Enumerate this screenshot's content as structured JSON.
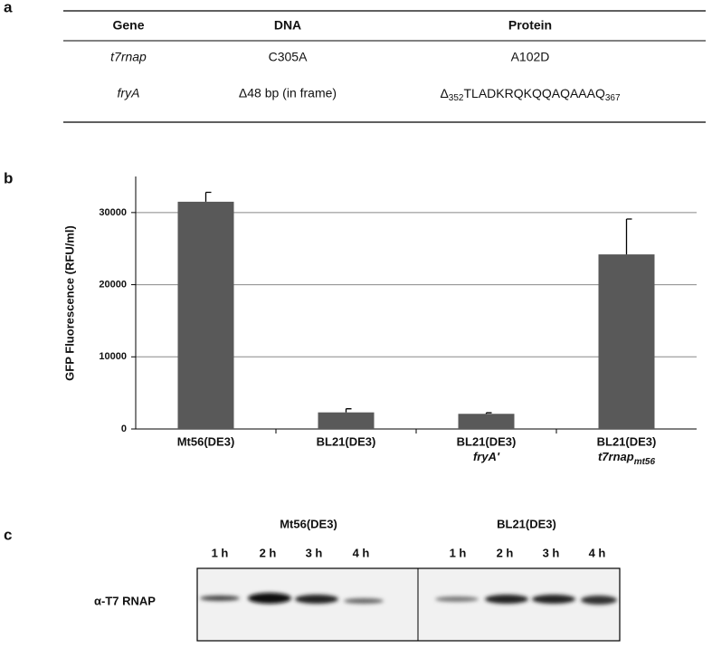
{
  "panel_labels": {
    "a": "a",
    "b": "b",
    "c": "c"
  },
  "table": {
    "header": [
      "Gene",
      "DNA",
      "Protein"
    ],
    "rows": [
      [
        "t7rnap",
        "C305A",
        "A102D"
      ],
      [
        "fryA",
        "Δ48 bp (in frame)",
        {
          "prefix": "Δ",
          "start": "352",
          "sequence": "TLADKRQKQQAQAAAQ",
          "end": "367"
        }
      ]
    ]
  },
  "chart_data": {
    "type": "bar",
    "y_label": "GFP Fluorescence (RFU/ml)",
    "categories": [
      "Mt56(DE3)",
      "BL21(DE3)",
      "BL21(DE3)",
      "BL21(DE3)"
    ],
    "category_sublabels": [
      null,
      null,
      {
        "text": "fryA'"
      },
      {
        "text": "t7rnap",
        "sub": "mt56"
      }
    ],
    "values": [
      31500,
      2300,
      2100,
      24200
    ],
    "errors": [
      1300,
      500,
      150,
      4900
    ],
    "color": "#595959",
    "ylim": [
      0,
      35000
    ],
    "yticks": [
      0,
      10000,
      20000,
      30000
    ],
    "grid": true
  },
  "blot": {
    "strains": [
      "Mt56(DE3)",
      "BL21(DE3)"
    ],
    "times": [
      "1 h",
      "2 h",
      "3 h",
      "4 h",
      "1 h",
      "2 h",
      "3 h",
      "4 h"
    ],
    "antibody": "α-T7 RNAP"
  }
}
